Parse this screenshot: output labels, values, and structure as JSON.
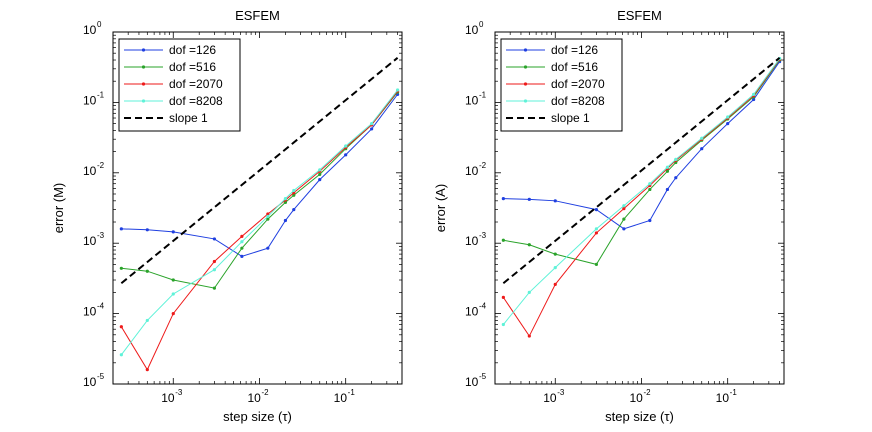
{
  "chart_data": [
    {
      "type": "line",
      "scale": "log-log",
      "title": "ESFEM",
      "xlabel": "step size (τ)",
      "ylabel": "error (M)",
      "xlim": [
        0.0002,
        0.45
      ],
      "ylim": [
        1e-05,
        1
      ],
      "x_ticks": [
        {
          "base": "10",
          "exp": "-3",
          "value": 0.001
        },
        {
          "base": "10",
          "exp": "-2",
          "value": 0.01
        },
        {
          "base": "10",
          "exp": "-1",
          "value": 0.1
        }
      ],
      "y_ticks": [
        {
          "base": "10",
          "exp": "-5",
          "value": 1e-05
        },
        {
          "base": "10",
          "exp": "-4",
          "value": 0.0001
        },
        {
          "base": "10",
          "exp": "-3",
          "value": 0.001
        },
        {
          "base": "10",
          "exp": "-2",
          "value": 0.01
        },
        {
          "base": "10",
          "exp": "-1",
          "value": 0.1
        },
        {
          "base": "10",
          "exp": "0",
          "value": 1
        }
      ],
      "legend_position": "top-left",
      "x": [
        0.00025,
        0.0005,
        0.001,
        0.003,
        0.00625,
        0.0125,
        0.02,
        0.025,
        0.05,
        0.1,
        0.2,
        0.4
      ],
      "series": [
        {
          "name": "dof =126",
          "color": "#1f3fe0",
          "style": "solid",
          "values": [
            0.0016,
            0.00155,
            0.00145,
            0.00115,
            0.00065,
            0.00085,
            0.0021,
            0.003,
            0.008,
            0.018,
            0.042,
            0.13
          ]
        },
        {
          "name": "dof =516",
          "color": "#2aa32a",
          "style": "solid",
          "values": [
            0.00044,
            0.0004,
            0.0003,
            0.00023,
            0.00085,
            0.0022,
            0.0038,
            0.0048,
            0.0095,
            0.022,
            0.048,
            0.14
          ]
        },
        {
          "name": "dof =2070",
          "color": "#ee1a1a",
          "style": "solid",
          "values": [
            6.5e-05,
            1.6e-05,
            0.0001,
            0.00055,
            0.00125,
            0.0026,
            0.0041,
            0.0052,
            0.0105,
            0.023,
            0.048,
            0.145
          ]
        },
        {
          "name": "dof =8208",
          "color": "#5ff2d8",
          "style": "solid",
          "values": [
            2.6e-05,
            8e-05,
            0.00019,
            0.00042,
            0.00105,
            0.0024,
            0.0043,
            0.0056,
            0.011,
            0.024,
            0.05,
            0.15
          ]
        },
        {
          "name": "slope 1",
          "color": "#000000",
          "style": "dashed",
          "x": [
            0.00025,
            0.4
          ],
          "values": [
            0.00027,
            0.43
          ]
        }
      ]
    },
    {
      "type": "line",
      "scale": "log-log",
      "title": "ESFEM",
      "xlabel": "step size (τ)",
      "ylabel": "error (A)",
      "xlim": [
        0.0002,
        0.45
      ],
      "ylim": [
        1e-05,
        1
      ],
      "x_ticks": [
        {
          "base": "10",
          "exp": "-3",
          "value": 0.001
        },
        {
          "base": "10",
          "exp": "-2",
          "value": 0.01
        },
        {
          "base": "10",
          "exp": "-1",
          "value": 0.1
        }
      ],
      "y_ticks": [
        {
          "base": "10",
          "exp": "-5",
          "value": 1e-05
        },
        {
          "base": "10",
          "exp": "-4",
          "value": 0.0001
        },
        {
          "base": "10",
          "exp": "-3",
          "value": 0.001
        },
        {
          "base": "10",
          "exp": "-2",
          "value": 0.01
        },
        {
          "base": "10",
          "exp": "-1",
          "value": 0.1
        },
        {
          "base": "10",
          "exp": "0",
          "value": 1
        }
      ],
      "legend_position": "top-left",
      "x": [
        0.00025,
        0.0005,
        0.001,
        0.003,
        0.00625,
        0.0125,
        0.02,
        0.025,
        0.05,
        0.1,
        0.2,
        0.4
      ],
      "series": [
        {
          "name": "dof =126",
          "color": "#1f3fe0",
          "style": "solid",
          "values": [
            0.0043,
            0.0042,
            0.004,
            0.003,
            0.0016,
            0.0021,
            0.0058,
            0.0085,
            0.022,
            0.05,
            0.11,
            0.38
          ]
        },
        {
          "name": "dof =516",
          "color": "#2aa32a",
          "style": "solid",
          "values": [
            0.0011,
            0.00095,
            0.0007,
            0.0005,
            0.0022,
            0.0058,
            0.0105,
            0.014,
            0.029,
            0.058,
            0.12,
            0.4
          ]
        },
        {
          "name": "dof =2070",
          "color": "#ee1a1a",
          "style": "solid",
          "values": [
            0.00017,
            4.8e-05,
            0.00026,
            0.0014,
            0.0031,
            0.0066,
            0.0115,
            0.015,
            0.03,
            0.06,
            0.125,
            0.41
          ]
        },
        {
          "name": "dof =8208",
          "color": "#5ff2d8",
          "style": "solid",
          "values": [
            7e-05,
            0.0002,
            0.00045,
            0.0016,
            0.0034,
            0.007,
            0.012,
            0.0155,
            0.031,
            0.062,
            0.13,
            0.42
          ]
        },
        {
          "name": "slope 1",
          "color": "#000000",
          "style": "dashed",
          "x": [
            0.00025,
            0.4
          ],
          "values": [
            0.00027,
            0.43
          ]
        }
      ]
    }
  ]
}
